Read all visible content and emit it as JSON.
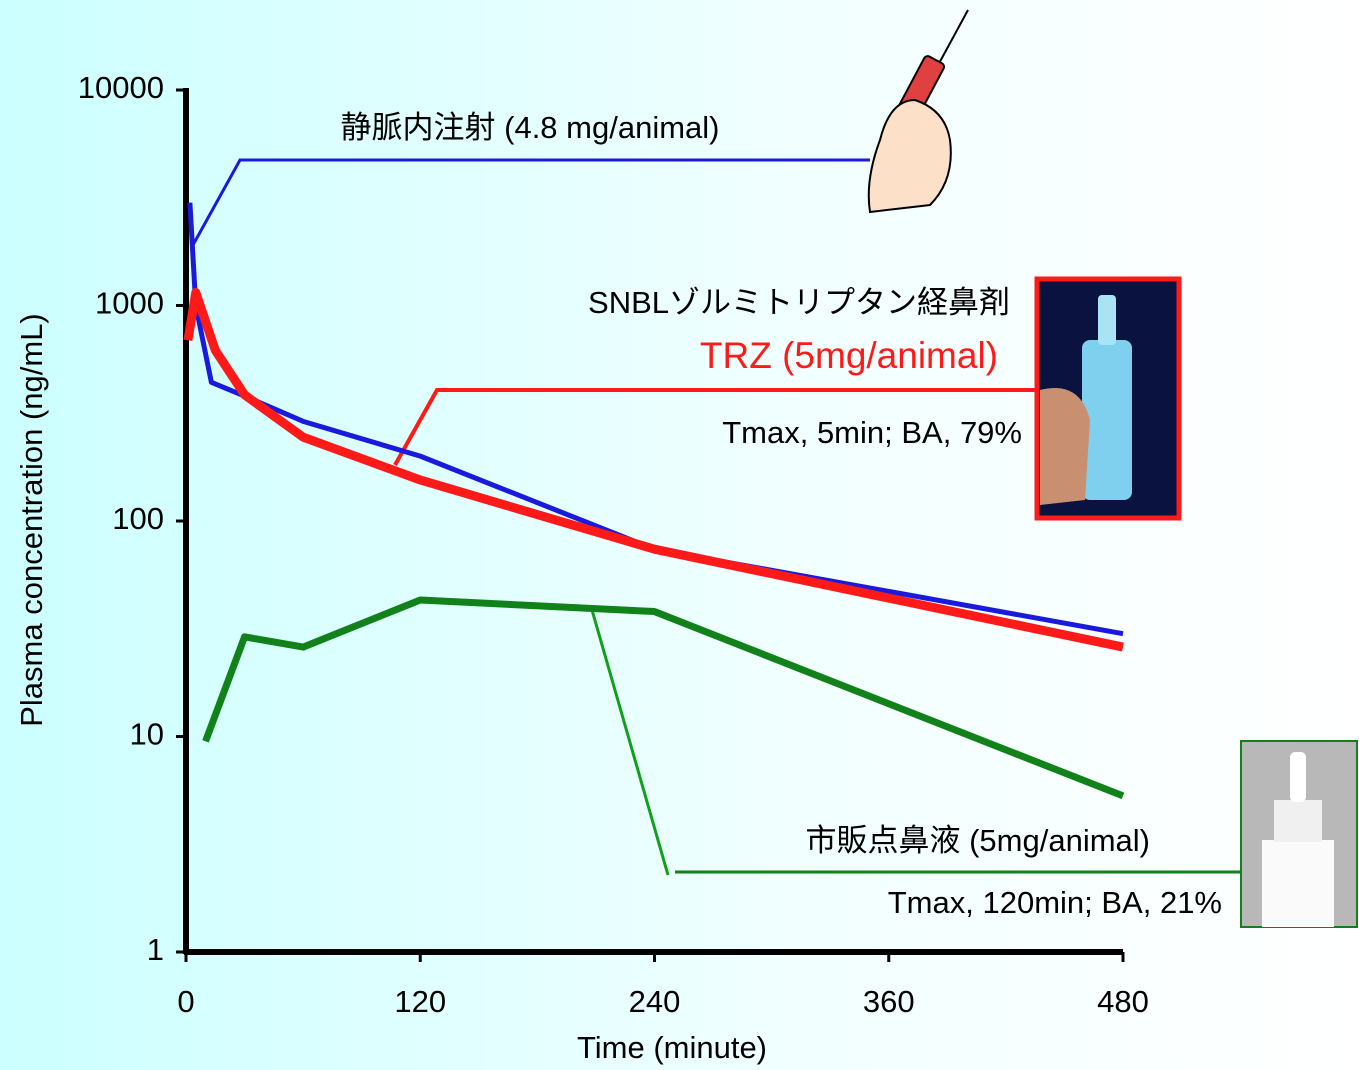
{
  "chart_data": {
    "type": "line",
    "xlabel": "Time (minute)",
    "ylabel": "Plasma concentration (ng/mL)",
    "yscale": "log",
    "xlim": [
      0,
      480
    ],
    "xticks": [
      0,
      120,
      240,
      360,
      480
    ],
    "ylim": [
      1,
      10000
    ],
    "yticks": [
      1,
      10,
      100,
      1000,
      10000
    ],
    "series": [
      {
        "name": "静脈内注射 (4.8 mg/animal)",
        "color": "#1a1adc",
        "width": 5,
        "x": [
          2,
          5,
          13,
          30,
          60,
          120,
          240,
          480
        ],
        "values": [
          3000,
          1000,
          440,
          380,
          290,
          200,
          74,
          30
        ]
      },
      {
        "name": "市販点鼻液 (5mg/animal)",
        "color": "#11821a",
        "width": 7,
        "x": [
          10,
          30,
          60,
          120,
          240,
          480
        ],
        "values": [
          9.5,
          29,
          26,
          43,
          38,
          5.3
        ]
      },
      {
        "name": "TRZ (5mg/animal)",
        "color": "#ff1a1a",
        "width": 9,
        "x": [
          1,
          5,
          15,
          30,
          60,
          120,
          240,
          480
        ],
        "values": [
          690,
          1150,
          620,
          385,
          245,
          155,
          74,
          26
        ]
      }
    ],
    "annotations": [
      "SNBLゾルミトリプタン経鼻剤",
      "Tmax, 5min; BA, 79%",
      "Tmax, 120min; BA, 21%"
    ]
  }
}
